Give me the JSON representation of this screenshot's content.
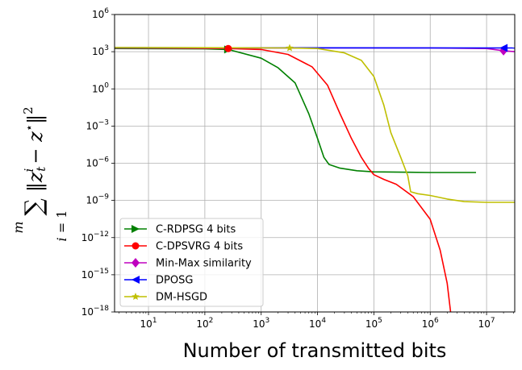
{
  "chart_data": {
    "type": "line",
    "xscale": "log",
    "yscale": "log",
    "xlabel": "Number of transmitted bits",
    "ylabel": "sum_{i=1}^{m} ||z_t^i - z*||^2",
    "xlim": [
      2.5,
      31622776
    ],
    "ylim": [
      1e-18,
      1000000.0
    ],
    "grid": true,
    "legend_position": "lower-left",
    "x_ticks": [
      {
        "value": 10,
        "base": "10",
        "exp": "1"
      },
      {
        "value": 100,
        "base": "10",
        "exp": "2"
      },
      {
        "value": 1000,
        "base": "10",
        "exp": "3"
      },
      {
        "value": 10000,
        "base": "10",
        "exp": "4"
      },
      {
        "value": 100000,
        "base": "10",
        "exp": "5"
      },
      {
        "value": 1000000,
        "base": "10",
        "exp": "6"
      },
      {
        "value": 10000000,
        "base": "10",
        "exp": "7"
      }
    ],
    "y_ticks": [
      {
        "value": 1000000.0,
        "base": "10",
        "exp": "6"
      },
      {
        "value": 1000.0,
        "base": "10",
        "exp": "3"
      },
      {
        "value": 1.0,
        "base": "10",
        "exp": "0"
      },
      {
        "value": 0.001,
        "base": "10",
        "exp": "−3"
      },
      {
        "value": 1e-06,
        "base": "10",
        "exp": "−6"
      },
      {
        "value": 1e-09,
        "base": "10",
        "exp": "−9"
      },
      {
        "value": 1e-12,
        "base": "10",
        "exp": "−12"
      },
      {
        "value": 1e-15,
        "base": "10",
        "exp": "−15"
      },
      {
        "value": 1e-18,
        "base": "10",
        "exp": "−18"
      }
    ],
    "series": [
      {
        "name": "C-RDPSG 4 bits",
        "color": "#008000",
        "marker": "triangle-right",
        "marker_points": [
          [
            260,
            1500
          ]
        ],
        "points": [
          [
            2.5,
            1800
          ],
          [
            100,
            1700
          ],
          [
            260,
            1500
          ],
          [
            1000,
            300
          ],
          [
            2000,
            50
          ],
          [
            4000,
            3
          ],
          [
            7000,
            0.01
          ],
          [
            10000,
            0.0001
          ],
          [
            13000,
            3e-06
          ],
          [
            16000,
            8e-07
          ],
          [
            25000,
            4e-07
          ],
          [
            50000,
            2.5e-07
          ],
          [
            100000,
            2e-07
          ],
          [
            1000000,
            1.8e-07
          ],
          [
            6500000,
            1.8e-07
          ]
        ]
      },
      {
        "name": "C-DPSVRG 4 bits",
        "color": "#ff0000",
        "marker": "circle",
        "marker_points": [
          [
            260,
            1800
          ]
        ],
        "points": [
          [
            2.5,
            2000
          ],
          [
            260,
            1800
          ],
          [
            1000,
            1500
          ],
          [
            3000,
            600
          ],
          [
            8000,
            60
          ],
          [
            15000,
            2
          ],
          [
            25000,
            0.01
          ],
          [
            40000,
            0.0001
          ],
          [
            60000,
            3e-06
          ],
          [
            80000,
            4e-07
          ],
          [
            100000,
            1.2e-07
          ],
          [
            150000,
            5e-08
          ],
          [
            250000,
            2e-08
          ],
          [
            500000,
            2e-09
          ],
          [
            1000000,
            3e-11
          ],
          [
            1500000,
            1e-13
          ],
          [
            2000000,
            2e-16
          ],
          [
            2300000,
            1e-18
          ]
        ]
      },
      {
        "name": "Min-Max similarity",
        "color": "#bf00bf",
        "marker": "diamond",
        "marker_points": [
          [
            20000000,
            1200
          ]
        ],
        "points": [
          [
            2.5,
            2000
          ],
          [
            1000000,
            2000
          ],
          [
            10000000,
            1800
          ],
          [
            20000000,
            1200
          ],
          [
            31622776,
            1000
          ]
        ]
      },
      {
        "name": "DPOSG",
        "color": "#0000ff",
        "marker": "triangle-left",
        "marker_points": [
          [
            20000000,
            2000
          ]
        ],
        "points": [
          [
            2.5,
            2100
          ],
          [
            31622776,
            2000
          ]
        ]
      },
      {
        "name": "DM-HSGD",
        "color": "#bfbf00",
        "marker": "star",
        "marker_points": [
          [
            3200,
            2000
          ]
        ],
        "points": [
          [
            2.5,
            2200
          ],
          [
            3200,
            2000
          ],
          [
            10000,
            1800
          ],
          [
            30000,
            800
          ],
          [
            60000,
            200
          ],
          [
            100000,
            10
          ],
          [
            150000,
            0.05
          ],
          [
            200000,
            0.0003
          ],
          [
            300000,
            3e-06
          ],
          [
            400000,
            1e-07
          ],
          [
            450000,
            5e-09
          ],
          [
            600000,
            3.5e-09
          ],
          [
            1000000,
            2.5e-09
          ],
          [
            2000000,
            1.3e-09
          ],
          [
            4000000,
            8e-10
          ],
          [
            10000000,
            7e-10
          ],
          [
            31622776,
            7e-10
          ]
        ]
      }
    ]
  }
}
